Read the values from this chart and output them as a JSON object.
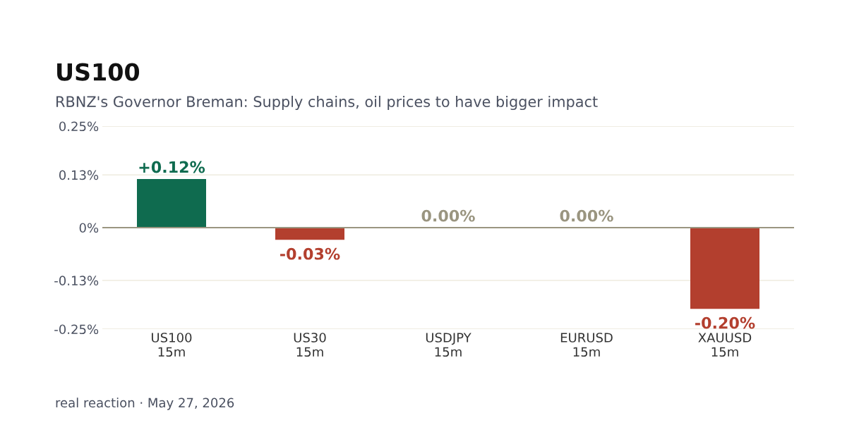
{
  "chart_data": {
    "type": "bar",
    "title": "US100",
    "subtitle": "RBNZ's Governor Breman: Supply chains, oil prices to have bigger impact",
    "categories": [
      "US100\n15m",
      "US30\n15m",
      "USDJPY\n15m",
      "EURUSD\n15m",
      "XAUUSD\n15m"
    ],
    "values": [
      0.12,
      -0.03,
      0.0,
      0.0,
      -0.2
    ],
    "colors": [
      "#0f6b4f",
      "#b33f2e",
      "#9a9580",
      "#9a9580",
      "#b33f2e"
    ],
    "value_labels": [
      "+0.12%",
      "-0.03%",
      "0.00%",
      "0.00%",
      "-0.20%"
    ],
    "ylim": [
      -0.25,
      0.25
    ],
    "yticks": [
      {
        "value": 0.25,
        "label": "0.25%"
      },
      {
        "value": 0.13,
        "label": "0.13%"
      },
      {
        "value": 0,
        "label": "0%"
      },
      {
        "value": -0.13,
        "label": "-0.13%"
      },
      {
        "value": -0.25,
        "label": "-0.25%"
      }
    ],
    "grid": "y",
    "legend": false,
    "ref_lines": [
      {
        "axis": "y",
        "value": 0,
        "color": "#9a9580"
      }
    ],
    "annotations": [
      "real reaction · May 27, 2026"
    ]
  }
}
